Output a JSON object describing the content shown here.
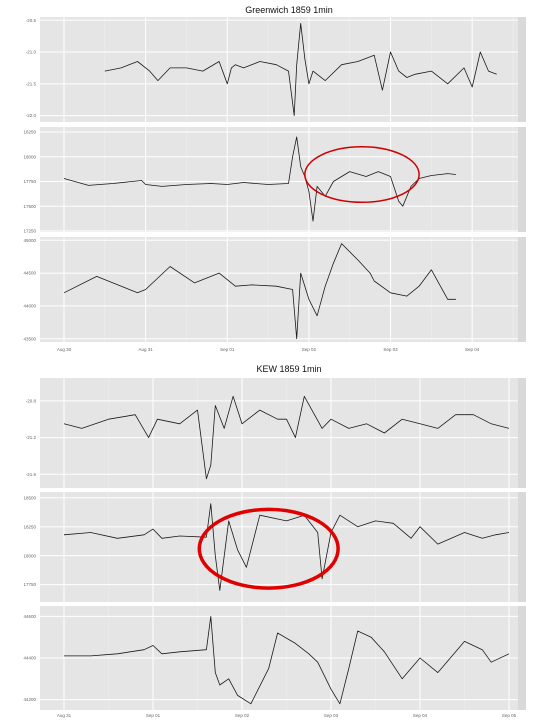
{
  "chart_data": [
    {
      "type": "line",
      "title": "Greenwich 1859 1min",
      "xlabel": "",
      "ylabel": "",
      "x_ticks": [
        "Aug 30",
        "Aug 31",
        "Sep 01",
        "Sep 02",
        "Sep 03",
        "Sep 04"
      ],
      "xlim": [
        0,
        5.5
      ],
      "grid": true,
      "highlight": {
        "shape": "ellipse",
        "color": "#d00000",
        "panel": 1,
        "x_center": 3.65,
        "y_center": 17820,
        "x_radius": 0.7,
        "y_radius": 280
      },
      "panels": [
        {
          "ylim": [
            -22.1,
            -20.45
          ],
          "y_ticks": [
            "-20.5",
            "-21.0",
            "-21.5",
            "-22.0"
          ],
          "y_tick_values": [
            -20.5,
            -21.0,
            -21.5,
            -22.0
          ],
          "series": [
            {
              "x": [
                0.5,
                0.7,
                0.9,
                1.05,
                1.15,
                1.3,
                1.5,
                1.7,
                1.9,
                2.0,
                2.05,
                2.1,
                2.2,
                2.4,
                2.6,
                2.75,
                2.82,
                2.85,
                2.9,
                2.95,
                3.0,
                3.05,
                3.1,
                3.2,
                3.4,
                3.6,
                3.8,
                3.9,
                4.0,
                4.1,
                4.2,
                4.3,
                4.5,
                4.7,
                4.9,
                5.0,
                5.1,
                5.2,
                5.3
              ],
              "values": [
                -21.3,
                -21.25,
                -21.15,
                -21.3,
                -21.45,
                -21.25,
                -21.25,
                -21.3,
                -21.15,
                -21.5,
                -21.25,
                -21.2,
                -21.25,
                -21.15,
                -21.2,
                -21.3,
                -22.0,
                -21.2,
                -20.55,
                -21.1,
                -21.5,
                -21.3,
                -21.35,
                -21.45,
                -21.2,
                -21.15,
                -21.05,
                -21.6,
                -21.0,
                -21.3,
                -21.4,
                -21.35,
                -21.3,
                -21.5,
                -21.25,
                -21.55,
                -21.0,
                -21.3,
                -21.35
              ]
            }
          ]
        },
        {
          "ylim": [
            17240,
            18300
          ],
          "y_ticks": [
            "18250",
            "18000",
            "17750",
            "17500",
            "17250"
          ],
          "y_tick_values": [
            18250,
            18000,
            17750,
            17500,
            17250
          ],
          "series": [
            {
              "x": [
                0,
                0.3,
                0.6,
                0.95,
                1.0,
                1.2,
                1.5,
                1.8,
                2.0,
                2.2,
                2.5,
                2.75,
                2.8,
                2.85,
                2.9,
                2.95,
                3.0,
                3.05,
                3.1,
                3.2,
                3.3,
                3.5,
                3.7,
                3.85,
                4.0,
                4.1,
                4.15,
                4.25,
                4.35,
                4.5,
                4.7,
                4.8
              ],
              "values": [
                17780,
                17710,
                17730,
                17760,
                17720,
                17700,
                17720,
                17730,
                17720,
                17740,
                17720,
                17730,
                18000,
                18200,
                17900,
                17800,
                17650,
                17350,
                17700,
                17600,
                17750,
                17850,
                17800,
                17850,
                17800,
                17550,
                17500,
                17700,
                17780,
                17810,
                17830,
                17820
              ]
            }
          ]
        },
        {
          "ylim": [
            43450,
            45050
          ],
          "y_ticks": [
            "45000",
            "44500",
            "44000",
            "43500"
          ],
          "y_tick_values": [
            45000,
            44500,
            44000,
            43500
          ],
          "series": [
            {
              "x": [
                0,
                0.4,
                0.9,
                1.0,
                1.3,
                1.6,
                1.9,
                2.1,
                2.3,
                2.6,
                2.8,
                2.85,
                2.9,
                3.0,
                3.1,
                3.2,
                3.3,
                3.4,
                3.6,
                3.75,
                3.8,
                4.0,
                4.2,
                4.35,
                4.5,
                4.7,
                4.8
              ],
              "values": [
                44200,
                44450,
                44200,
                44250,
                44600,
                44350,
                44500,
                44300,
                44320,
                44300,
                44250,
                43500,
                44500,
                44100,
                43850,
                44300,
                44650,
                44950,
                44700,
                44500,
                44380,
                44200,
                44150,
                44300,
                44550,
                44100,
                44100
              ]
            }
          ]
        }
      ]
    },
    {
      "type": "line",
      "title": "KEW 1859 1min",
      "xlabel": "",
      "ylabel": "",
      "x_ticks": [
        "Aug 31",
        "Sep 01",
        "Sep 02",
        "Sep 03",
        "Sep 04",
        "Sep 05"
      ],
      "xlim": [
        0,
        5
      ],
      "grid": true,
      "highlight": {
        "shape": "ellipse",
        "color": "#e00000",
        "panel": 1,
        "x_center": 2.3,
        "y_center": 18060,
        "x_radius": 0.78,
        "y_radius": 340
      },
      "panels": [
        {
          "ylim": [
            -21.75,
            -20.55
          ],
          "y_ticks": [
            "-20.8",
            "-21.2",
            "-21.6"
          ],
          "y_tick_values": [
            -20.8,
            -21.2,
            -21.6
          ],
          "series": [
            {
              "x": [
                0,
                0.2,
                0.5,
                0.8,
                0.95,
                1.05,
                1.3,
                1.5,
                1.6,
                1.65,
                1.7,
                1.8,
                1.9,
                2.0,
                2.2,
                2.4,
                2.5,
                2.6,
                2.7,
                2.9,
                3.0,
                3.2,
                3.4,
                3.6,
                3.8,
                4.0,
                4.2,
                4.4,
                4.6,
                4.8,
                5.0
              ],
              "values": [
                -21.05,
                -21.1,
                -21.0,
                -20.95,
                -21.2,
                -21.0,
                -21.05,
                -20.9,
                -21.65,
                -21.5,
                -20.85,
                -21.1,
                -20.75,
                -21.05,
                -20.9,
                -21.0,
                -21.0,
                -21.2,
                -20.75,
                -21.1,
                -21.0,
                -21.1,
                -21.05,
                -21.15,
                -21.0,
                -21.05,
                -21.1,
                -20.95,
                -20.95,
                -21.05,
                -21.1
              ]
            }
          ]
        },
        {
          "ylim": [
            17600,
            18550
          ],
          "y_ticks": [
            "18500",
            "18250",
            "18000",
            "17750"
          ],
          "y_tick_values": [
            18500,
            18250,
            18000,
            17750
          ],
          "series": [
            {
              "x": [
                0,
                0.3,
                0.6,
                0.9,
                1.0,
                1.1,
                1.3,
                1.6,
                1.65,
                1.7,
                1.75,
                1.85,
                1.95,
                2.05,
                2.2,
                2.5,
                2.7,
                2.85,
                2.9,
                3.0,
                3.1,
                3.3,
                3.5,
                3.7,
                3.9,
                4.0,
                4.2,
                4.5,
                4.7,
                4.85,
                5.0
              ],
              "values": [
                18180,
                18200,
                18150,
                18180,
                18230,
                18150,
                18170,
                18160,
                18450,
                18000,
                17700,
                18300,
                18050,
                17900,
                18350,
                18300,
                18350,
                18200,
                17800,
                18200,
                18350,
                18250,
                18300,
                18280,
                18150,
                18250,
                18100,
                18200,
                18150,
                18180,
                18200
              ]
            }
          ]
        },
        {
          "ylim": [
            44150,
            44650
          ],
          "y_ticks": [
            "44600",
            "44400",
            "44200"
          ],
          "y_tick_values": [
            44600,
            44400,
            44200
          ],
          "series": [
            {
              "x": [
                0,
                0.3,
                0.6,
                0.9,
                1.0,
                1.1,
                1.3,
                1.6,
                1.65,
                1.7,
                1.75,
                1.85,
                1.95,
                2.1,
                2.3,
                2.4,
                2.6,
                2.75,
                2.85,
                3.0,
                3.1,
                3.2,
                3.3,
                3.45,
                3.6,
                3.8,
                4.0,
                4.2,
                4.5,
                4.7,
                4.8,
                5.0
              ],
              "values": [
                44410,
                44410,
                44420,
                44440,
                44460,
                44420,
                44430,
                44440,
                44600,
                44330,
                44270,
                44300,
                44220,
                44180,
                44350,
                44520,
                44470,
                44420,
                44380,
                44250,
                44180,
                44350,
                44530,
                44500,
                44430,
                44300,
                44400,
                44330,
                44480,
                44440,
                44380,
                44420
              ]
            }
          ]
        }
      ]
    }
  ]
}
